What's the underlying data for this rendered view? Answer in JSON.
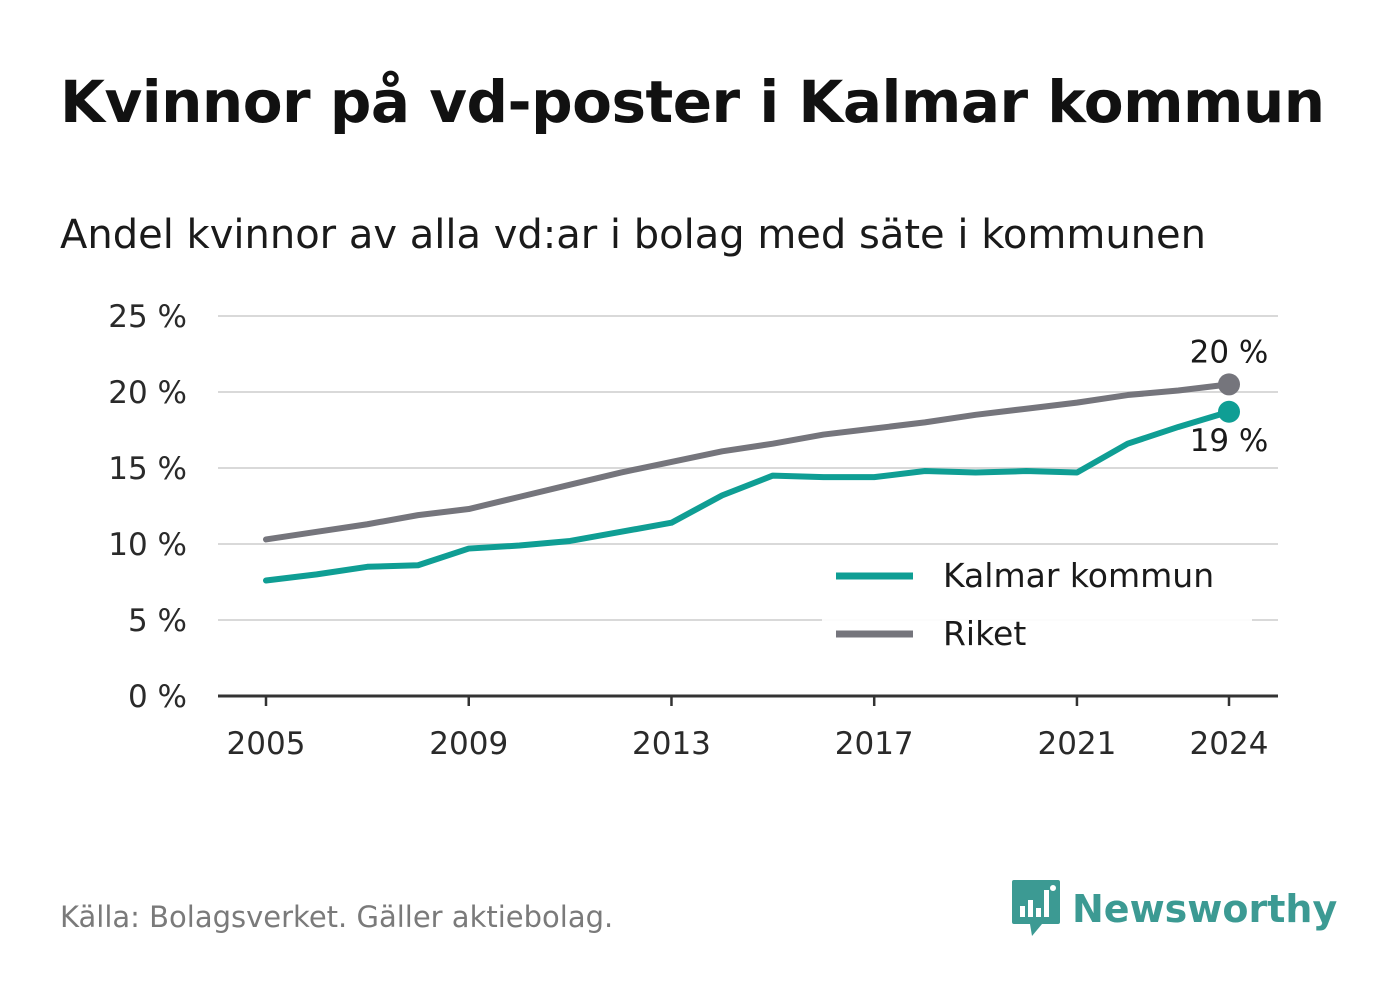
{
  "title": "Kvinnor på vd-poster i Kalmar kommun",
  "subtitle": "Andel kvinnor av alla vd:ar i bolag med säte i kommunen",
  "source": "Källa: Bolagsverket. Gäller aktiebolag.",
  "brand": {
    "name": "Newsworthy",
    "icon": "newsworthy-logo-icon",
    "color": "#3c9a93"
  },
  "chart_data": {
    "type": "line",
    "title": "Kvinnor på vd-poster i Kalmar kommun",
    "subtitle": "Andel kvinnor av alla vd:ar i bolag med säte i kommunen",
    "xlabel": "",
    "ylabel": "",
    "x": [
      2005,
      2006,
      2007,
      2008,
      2009,
      2010,
      2011,
      2012,
      2013,
      2014,
      2015,
      2016,
      2017,
      2018,
      2019,
      2020,
      2021,
      2022,
      2023,
      2024
    ],
    "x_ticks": [
      "2005",
      "2009",
      "2013",
      "2017",
      "2021",
      "2024"
    ],
    "y_ticks": [
      "0 %",
      "5 %",
      "10 %",
      "15 %",
      "20 %",
      "25 %"
    ],
    "ylim": [
      0,
      25
    ],
    "grid": true,
    "legend_position": "bottom-right",
    "series": [
      {
        "name": "Kalmar kommun",
        "color": "#0f9e94",
        "values": [
          7.6,
          8.0,
          8.5,
          8.6,
          9.7,
          9.9,
          10.2,
          10.8,
          11.4,
          13.2,
          14.5,
          14.4,
          14.4,
          14.8,
          14.7,
          14.8,
          14.7,
          16.6,
          17.7,
          18.7
        ],
        "end_label": "19 %"
      },
      {
        "name": "Riket",
        "color": "#75757c",
        "values": [
          10.3,
          10.8,
          11.3,
          11.9,
          12.3,
          13.1,
          13.9,
          14.7,
          15.4,
          16.1,
          16.6,
          17.2,
          17.6,
          18.0,
          18.5,
          18.9,
          19.3,
          19.8,
          20.1,
          20.5
        ],
        "end_label": "20 %"
      }
    ]
  }
}
